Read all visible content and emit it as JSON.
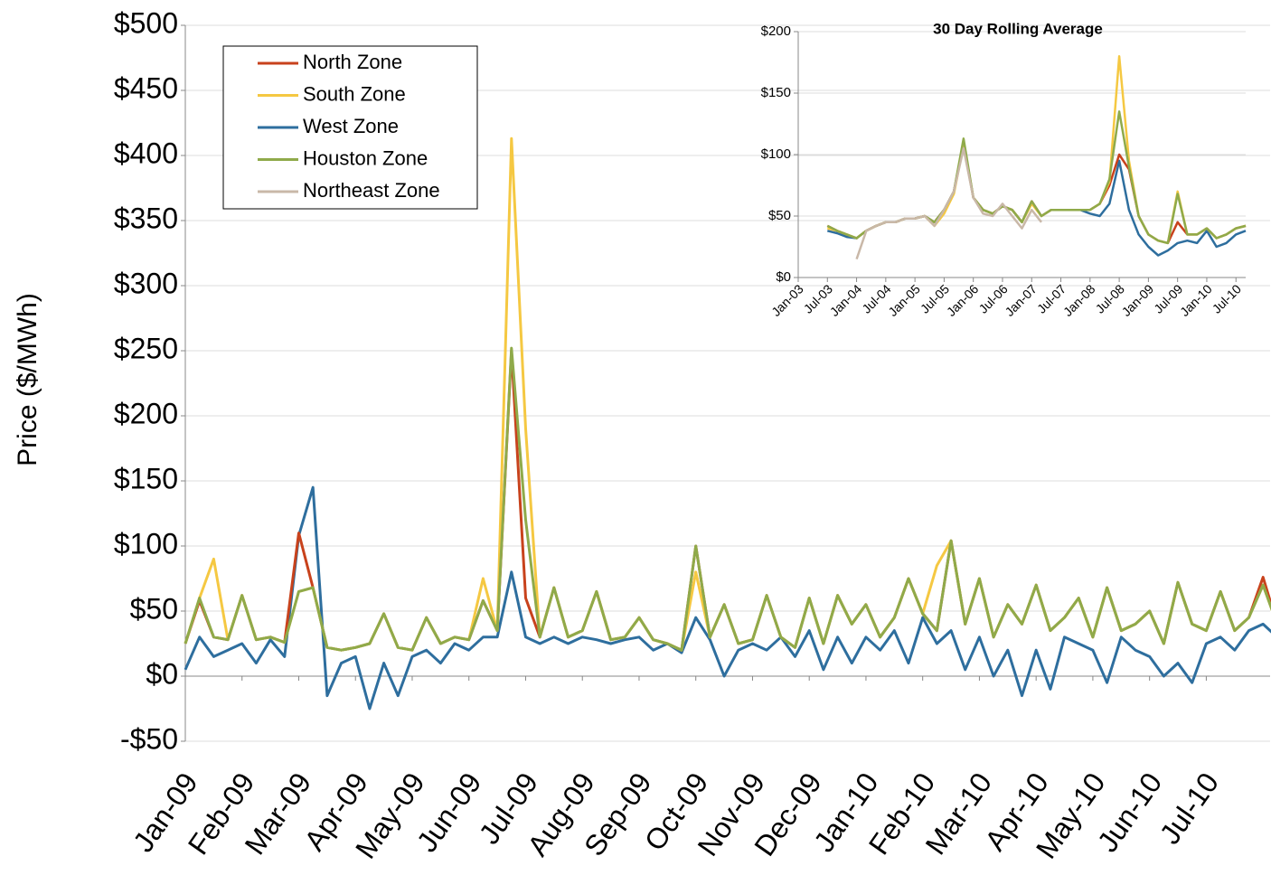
{
  "chart_data": [
    {
      "type": "line",
      "y_label": "Price ($/MWh)",
      "categories": [
        "Jan-09",
        null,
        null,
        null,
        "Feb-09",
        null,
        null,
        null,
        "Mar-09",
        null,
        null,
        null,
        "Apr-09",
        null,
        null,
        null,
        "May-09",
        null,
        null,
        null,
        "Jun-09",
        null,
        null,
        null,
        "Jul-09",
        null,
        null,
        null,
        "Aug-09",
        null,
        null,
        null,
        "Sep-09",
        null,
        null,
        null,
        "Oct-09",
        null,
        null,
        null,
        "Nov-09",
        null,
        null,
        null,
        "Dec-09",
        null,
        null,
        null,
        "Jan-10",
        null,
        null,
        null,
        "Feb-10",
        null,
        null,
        null,
        "Mar-10",
        null,
        null,
        null,
        "Apr-10",
        null,
        null,
        null,
        "May-10",
        null,
        null,
        null,
        "Jun-10",
        null,
        null,
        null,
        "Jul-10",
        null,
        null,
        null,
        null,
        null
      ],
      "ylim": [
        -50,
        500
      ],
      "yticks": [
        {
          "value": 500,
          "label": "$500"
        },
        {
          "value": 450,
          "label": "$450"
        },
        {
          "value": 400,
          "label": "$400"
        },
        {
          "value": 350,
          "label": "$350"
        },
        {
          "value": 300,
          "label": "$300"
        },
        {
          "value": 250,
          "label": "$250"
        },
        {
          "value": 200,
          "label": "$200"
        },
        {
          "value": 150,
          "label": "$150"
        },
        {
          "value": 100,
          "label": "$100"
        },
        {
          "value": 50,
          "label": "$50"
        },
        {
          "value": 0,
          "label": "$0"
        },
        {
          "value": -50,
          "label": "-$50"
        }
      ],
      "grid": true,
      "series": [
        {
          "name": "North Zone",
          "color": "#c8421c",
          "values": [
            25,
            58,
            30,
            28,
            62,
            28,
            30,
            26,
            110,
            68,
            22,
            20,
            22,
            25,
            48,
            22,
            20,
            45,
            25,
            30,
            28,
            58,
            35,
            250,
            60,
            30,
            68,
            30,
            35,
            65,
            28,
            30,
            45,
            28,
            25,
            20,
            100,
            30,
            55,
            25,
            28,
            62,
            30,
            22,
            60,
            25,
            62,
            40,
            55,
            30,
            45,
            75,
            48,
            35,
            104,
            40,
            75,
            30,
            55,
            40,
            70,
            35,
            45,
            60,
            30,
            68,
            35,
            40,
            50,
            25,
            72,
            40,
            35,
            65,
            35,
            45,
            76,
            40
          ]
        },
        {
          "name": "South Zone",
          "color": "#f5c842",
          "values": [
            25,
            60,
            90,
            28,
            62,
            28,
            30,
            26,
            65,
            68,
            22,
            20,
            22,
            25,
            48,
            22,
            20,
            45,
            25,
            30,
            28,
            75,
            35,
            413,
            190,
            30,
            68,
            30,
            35,
            65,
            28,
            30,
            45,
            28,
            25,
            20,
            80,
            30,
            55,
            25,
            28,
            62,
            30,
            22,
            60,
            25,
            62,
            40,
            55,
            30,
            45,
            75,
            48,
            85,
            104,
            40,
            75,
            30,
            55,
            40,
            70,
            35,
            45,
            60,
            30,
            68,
            35,
            40,
            50,
            25,
            72,
            40,
            35,
            65,
            35,
            45,
            70,
            40
          ]
        },
        {
          "name": "West Zone",
          "color": "#2e6e9e",
          "values": [
            5,
            30,
            15,
            20,
            25,
            10,
            28,
            15,
            108,
            145,
            -15,
            10,
            15,
            -25,
            10,
            -15,
            15,
            20,
            10,
            25,
            20,
            30,
            30,
            80,
            30,
            25,
            30,
            25,
            30,
            28,
            25,
            28,
            30,
            20,
            25,
            18,
            45,
            28,
            0,
            20,
            25,
            20,
            30,
            15,
            35,
            5,
            30,
            10,
            30,
            20,
            35,
            10,
            45,
            25,
            35,
            5,
            30,
            0,
            20,
            -15,
            20,
            -10,
            30,
            25,
            20,
            -5,
            30,
            20,
            15,
            0,
            10,
            -5,
            25,
            30,
            20,
            35,
            40,
            30
          ]
        },
        {
          "name": "Houston Zone",
          "color": "#8faa4a",
          "values": [
            25,
            60,
            30,
            28,
            62,
            28,
            30,
            26,
            65,
            68,
            22,
            20,
            22,
            25,
            48,
            22,
            20,
            45,
            25,
            30,
            28,
            58,
            35,
            252,
            120,
            30,
            68,
            30,
            35,
            65,
            28,
            30,
            45,
            28,
            25,
            20,
            100,
            30,
            55,
            25,
            28,
            62,
            30,
            22,
            60,
            25,
            62,
            40,
            55,
            30,
            45,
            75,
            48,
            35,
            104,
            40,
            75,
            30,
            55,
            40,
            70,
            35,
            45,
            60,
            30,
            68,
            35,
            40,
            50,
            25,
            72,
            40,
            35,
            65,
            35,
            45,
            70,
            40
          ]
        },
        {
          "name": "Northeast Zone",
          "color": "#c9b8a8",
          "values": [
            null,
            null,
            null,
            null,
            null,
            null,
            null,
            null,
            null,
            null,
            null,
            null,
            null,
            null,
            null,
            null,
            null,
            null,
            null,
            null,
            null,
            null,
            null,
            null,
            null,
            null,
            null,
            null,
            null,
            null,
            null,
            null,
            null,
            null,
            null,
            null,
            null,
            null,
            null,
            null,
            null,
            null,
            null,
            null,
            null,
            null,
            null,
            null,
            null,
            null,
            null,
            null,
            null,
            null,
            null,
            null,
            null,
            null,
            null,
            null,
            null,
            null,
            null,
            null,
            null,
            null,
            null,
            null,
            null,
            null,
            null,
            null,
            null,
            null,
            null,
            null,
            null,
            null
          ]
        }
      ]
    },
    {
      "type": "line",
      "title": "30 Day Rolling Average",
      "categories": [
        "Jan-03",
        null,
        null,
        "Jul-03",
        null,
        null,
        "Jan-04",
        null,
        null,
        "Jul-04",
        null,
        null,
        "Jan-05",
        null,
        null,
        "Jul-05",
        null,
        null,
        "Jan-06",
        null,
        null,
        "Jul-06",
        null,
        null,
        "Jan-07",
        null,
        null,
        "Jul-07",
        null,
        null,
        "Jan-08",
        null,
        null,
        "Jul-08",
        null,
        null,
        "Jan-09",
        null,
        null,
        "Jul-09",
        null,
        null,
        "Jan-10",
        null,
        null,
        "Jul-10",
        null
      ],
      "ylim": [
        0,
        200
      ],
      "yticks": [
        {
          "value": 200,
          "label": "$200"
        },
        {
          "value": 150,
          "label": "$150"
        },
        {
          "value": 100,
          "label": "$100"
        },
        {
          "value": 50,
          "label": "$50"
        },
        {
          "value": 0,
          "label": "$0"
        }
      ],
      "grid": true,
      "series": [
        {
          "name": "North Zone",
          "color": "#c8421c",
          "values": [
            null,
            null,
            null,
            42,
            38,
            35,
            32,
            38,
            42,
            45,
            45,
            48,
            48,
            50,
            45,
            55,
            70,
            110,
            65,
            55,
            52,
            58,
            55,
            45,
            62,
            50,
            55,
            55,
            55,
            55,
            55,
            60,
            75,
            100,
            88,
            50,
            35,
            30,
            28,
            45,
            35,
            35,
            40,
            32,
            35,
            40,
            42
          ]
        },
        {
          "name": "South Zone",
          "color": "#f5c842",
          "values": [
            null,
            null,
            null,
            40,
            38,
            35,
            32,
            38,
            42,
            45,
            45,
            48,
            48,
            50,
            42,
            52,
            68,
            108,
            65,
            55,
            52,
            58,
            55,
            45,
            60,
            50,
            55,
            55,
            55,
            55,
            55,
            60,
            78,
            180,
            95,
            50,
            35,
            30,
            28,
            70,
            35,
            35,
            40,
            32,
            35,
            40,
            42
          ]
        },
        {
          "name": "West Zone",
          "color": "#2e6e9e",
          "values": [
            null,
            null,
            null,
            38,
            36,
            33,
            32,
            38,
            42,
            45,
            45,
            48,
            48,
            50,
            45,
            55,
            70,
            108,
            65,
            55,
            52,
            58,
            55,
            45,
            62,
            50,
            55,
            55,
            55,
            55,
            52,
            50,
            60,
            95,
            55,
            35,
            25,
            18,
            22,
            28,
            30,
            28,
            38,
            25,
            28,
            35,
            38
          ]
        },
        {
          "name": "Houston Zone",
          "color": "#8faa4a",
          "values": [
            null,
            null,
            null,
            42,
            38,
            35,
            32,
            38,
            42,
            45,
            45,
            48,
            48,
            50,
            45,
            55,
            70,
            113,
            65,
            55,
            52,
            58,
            55,
            45,
            62,
            50,
            55,
            55,
            55,
            55,
            55,
            60,
            80,
            135,
            90,
            50,
            35,
            30,
            28,
            68,
            35,
            35,
            40,
            32,
            35,
            40,
            42
          ]
        },
        {
          "name": "Northeast Zone",
          "color": "#c9b8a8",
          "values": [
            null,
            null,
            null,
            null,
            null,
            null,
            15,
            38,
            42,
            45,
            45,
            48,
            48,
            50,
            42,
            55,
            70,
            105,
            65,
            52,
            50,
            60,
            50,
            40,
            55,
            45,
            null,
            null,
            null,
            null,
            null,
            null,
            null,
            null,
            null,
            null,
            null,
            null,
            null,
            null,
            null,
            null,
            null,
            null,
            null,
            null,
            null
          ]
        }
      ]
    }
  ]
}
